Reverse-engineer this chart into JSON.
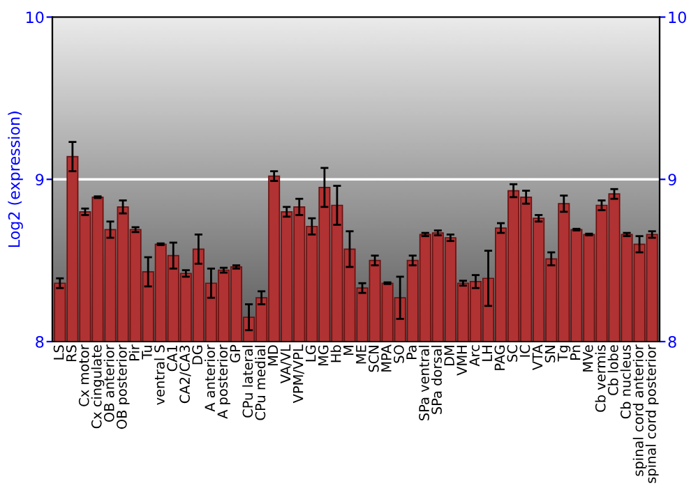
{
  "chart_data": {
    "type": "bar",
    "ylabel": "Log2 (expression)",
    "categories": [
      "LS",
      "RS",
      "Cx motor",
      "Cx cingulate",
      "OB anterior",
      "OB posterior",
      "Pir",
      "Tu",
      "ventral S",
      "CA1",
      "CA2/CA3",
      "DG",
      "A anterior",
      "A posterior",
      "GP",
      "CPu lateral",
      "CPu medial",
      "MD",
      "VA/VL",
      "VPM/VPL",
      "LG",
      "MG",
      "Hb",
      "M",
      "ME",
      "SCN",
      "MPA",
      "SO",
      "Pa",
      "SPa ventral",
      "SPa dorsal",
      "DM",
      "VMH",
      "Arc",
      "LH",
      "PAG",
      "SC",
      "IC",
      "VTA",
      "SN",
      "Tg",
      "Pn",
      "MVe",
      "Cb vermis",
      "Cb lobe",
      "Cb nucleus",
      "spinal cord anterior",
      "spinal cord posterior"
    ],
    "values": [
      8.36,
      9.14,
      8.8,
      8.89,
      8.69,
      8.83,
      8.69,
      8.43,
      8.6,
      8.53,
      8.42,
      8.57,
      8.36,
      8.44,
      8.46,
      8.15,
      8.27,
      9.02,
      8.8,
      8.83,
      8.71,
      8.95,
      8.84,
      8.57,
      8.33,
      8.5,
      8.36,
      8.27,
      8.5,
      8.66,
      8.67,
      8.64,
      8.36,
      8.37,
      8.39,
      8.7,
      8.93,
      8.89,
      8.76,
      8.51,
      8.85,
      8.69,
      8.66,
      8.84,
      8.91,
      8.66,
      8.6,
      8.66
    ],
    "errors": [
      0.03,
      0.09,
      0.02,
      0.005,
      0.05,
      0.04,
      0.015,
      0.09,
      0.005,
      0.08,
      0.02,
      0.09,
      0.09,
      0.015,
      0.01,
      0.08,
      0.04,
      0.03,
      0.03,
      0.05,
      0.05,
      0.12,
      0.12,
      0.11,
      0.03,
      0.03,
      0.005,
      0.13,
      0.03,
      0.01,
      0.015,
      0.02,
      0.015,
      0.04,
      0.17,
      0.03,
      0.04,
      0.04,
      0.02,
      0.04,
      0.05,
      0.005,
      0.005,
      0.03,
      0.03,
      0.01,
      0.05,
      0.02
    ],
    "color": "#b03232",
    "ylim": [
      8,
      10
    ],
    "yticks": [
      8,
      9,
      10
    ],
    "y2lim": [
      8,
      10
    ],
    "y2ticks": [
      8,
      9,
      10
    ],
    "grid": "y"
  }
}
